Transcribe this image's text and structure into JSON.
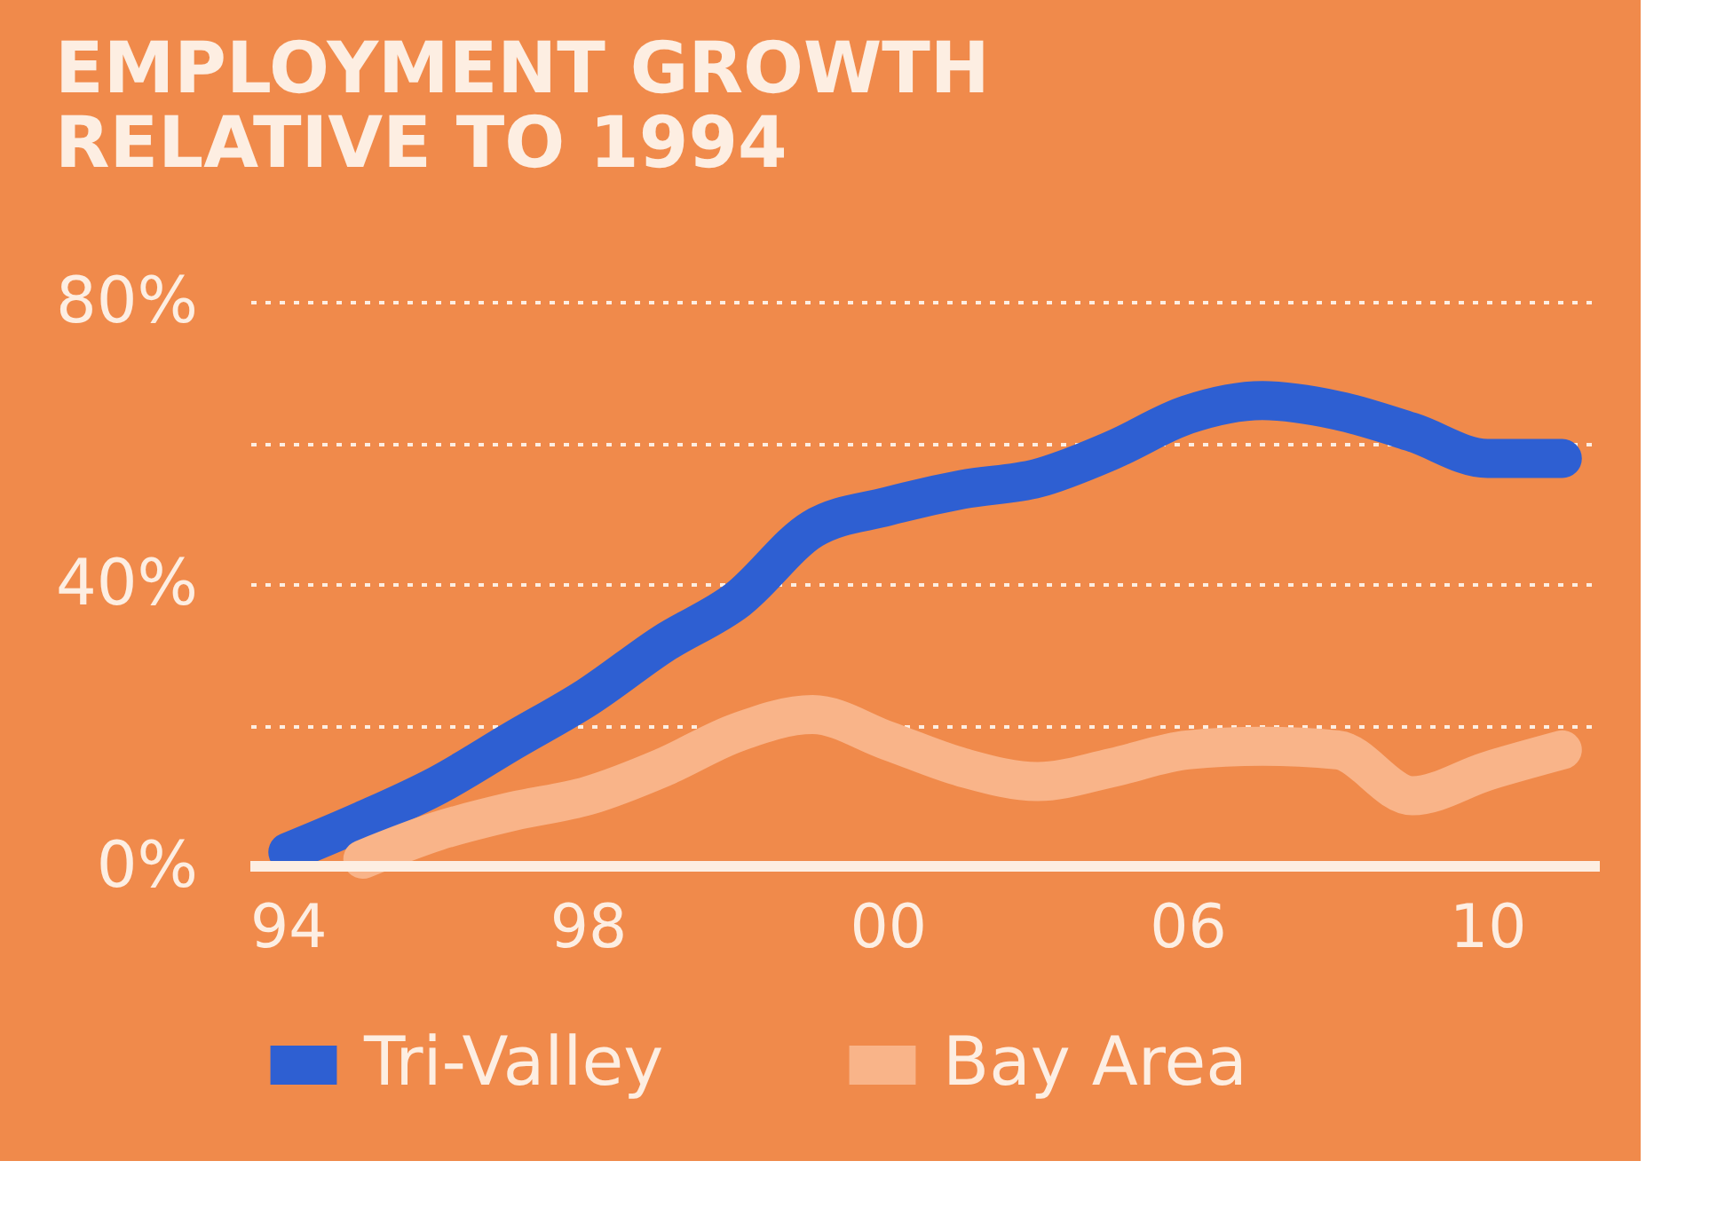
{
  "chart_data": {
    "type": "line",
    "title": "EMPLOYMENT GROWTH\nRELATIVE TO 1994",
    "categories": [
      "94",
      null,
      null,
      null,
      "98",
      null,
      null,
      null,
      "00",
      null,
      null,
      null,
      "06",
      null,
      null,
      null,
      "10",
      null
    ],
    "series": [
      {
        "name": "Tri-Valley",
        "color": "#2e5fd2",
        "values": [
          2,
          6.5,
          11.5,
          17.8,
          24,
          31.5,
          37.8,
          47.8,
          51,
          53.4,
          55,
          59,
          64,
          66,
          64.6,
          61.5,
          57.8,
          57.8
        ]
      },
      {
        "name": "Bay Area",
        "color": "#f9b489",
        "values": [
          null,
          1,
          5,
          7.8,
          10,
          14,
          19,
          21.5,
          17.8,
          14,
          12,
          14,
          16.5,
          17,
          16.5,
          10,
          13.5,
          16.5
        ]
      }
    ],
    "ylim": [
      0,
      80
    ],
    "yticks": [
      {
        "value": 0,
        "label": "0%"
      },
      {
        "value": 20,
        "label": null
      },
      {
        "value": 40,
        "label": "40%"
      },
      {
        "value": 60,
        "label": null
      },
      {
        "value": 80,
        "label": "80%"
      }
    ],
    "grid": "y",
    "legend": "bottom",
    "line_style": "solid"
  }
}
